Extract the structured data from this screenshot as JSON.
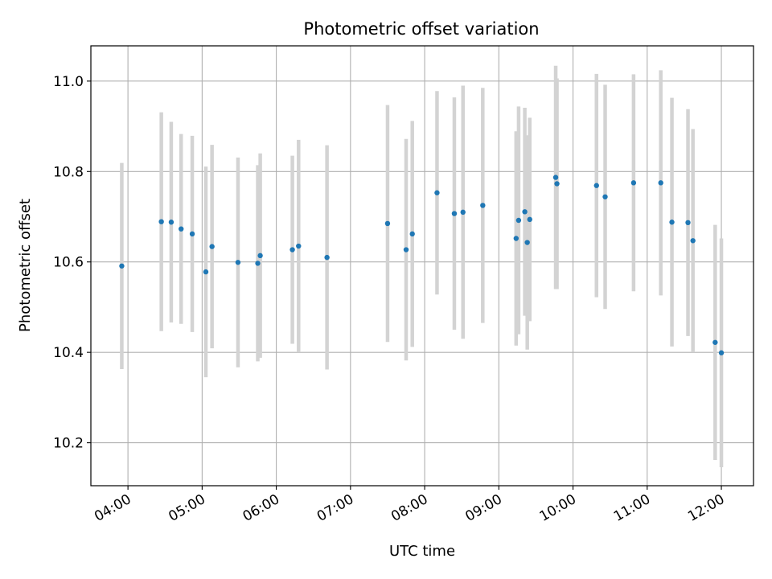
{
  "chart_data": {
    "type": "scatter",
    "title": "Photometric offset variation",
    "xlabel": "UTC time",
    "ylabel": "Photometric offset",
    "x_axis_kind": "time",
    "xlim": [
      "03:30",
      "12:26"
    ],
    "ylim": [
      10.105,
      11.078
    ],
    "xticks": [
      "04:00",
      "05:00",
      "06:00",
      "07:00",
      "08:00",
      "09:00",
      "10:00",
      "11:00",
      "12:00"
    ],
    "yticks": [
      10.2,
      10.4,
      10.6,
      10.8,
      11.0
    ],
    "ytick_labels": [
      "10.2",
      "10.4",
      "10.6",
      "10.8",
      "11.0"
    ],
    "grid": true,
    "marker_color": "#1f77b4",
    "errorbar_color": "#d3d3d3",
    "points": [
      {
        "x": "03:55",
        "y": 10.591,
        "err": 0.228
      },
      {
        "x": "04:27",
        "y": 10.689,
        "err": 0.242
      },
      {
        "x": "04:35",
        "y": 10.688,
        "err": 0.222
      },
      {
        "x": "04:43",
        "y": 10.673,
        "err": 0.21
      },
      {
        "x": "04:52",
        "y": 10.662,
        "err": 0.217
      },
      {
        "x": "05:03",
        "y": 10.578,
        "err": 0.233
      },
      {
        "x": "05:08",
        "y": 10.634,
        "err": 0.225
      },
      {
        "x": "05:29",
        "y": 10.599,
        "err": 0.232
      },
      {
        "x": "05:45",
        "y": 10.597,
        "err": 0.217
      },
      {
        "x": "05:47",
        "y": 10.614,
        "err": 0.226
      },
      {
        "x": "06:13",
        "y": 10.627,
        "err": 0.208
      },
      {
        "x": "06:18",
        "y": 10.635,
        "err": 0.235
      },
      {
        "x": "06:41",
        "y": 10.61,
        "err": 0.248
      },
      {
        "x": "07:30",
        "y": 10.685,
        "err": 0.262
      },
      {
        "x": "07:45",
        "y": 10.627,
        "err": 0.245
      },
      {
        "x": "07:50",
        "y": 10.662,
        "err": 0.25
      },
      {
        "x": "08:10",
        "y": 10.753,
        "err": 0.225
      },
      {
        "x": "08:24",
        "y": 10.707,
        "err": 0.257
      },
      {
        "x": "08:31",
        "y": 10.71,
        "err": 0.28
      },
      {
        "x": "08:47",
        "y": 10.725,
        "err": 0.26
      },
      {
        "x": "09:14",
        "y": 10.652,
        "err": 0.237
      },
      {
        "x": "09:16",
        "y": 10.692,
        "err": 0.252
      },
      {
        "x": "09:21",
        "y": 10.711,
        "err": 0.23
      },
      {
        "x": "09:23",
        "y": 10.643,
        "err": 0.237
      },
      {
        "x": "09:25",
        "y": 10.694,
        "err": 0.225
      },
      {
        "x": "09:46",
        "y": 10.787,
        "err": 0.247
      },
      {
        "x": "09:47",
        "y": 10.773,
        "err": 0.233
      },
      {
        "x": "10:19",
        "y": 10.769,
        "err": 0.247
      },
      {
        "x": "10:26",
        "y": 10.744,
        "err": 0.248
      },
      {
        "x": "10:49",
        "y": 10.775,
        "err": 0.24
      },
      {
        "x": "11:11",
        "y": 10.775,
        "err": 0.249
      },
      {
        "x": "11:20",
        "y": 10.688,
        "err": 0.275
      },
      {
        "x": "11:33",
        "y": 10.687,
        "err": 0.251
      },
      {
        "x": "11:37",
        "y": 10.647,
        "err": 0.247
      },
      {
        "x": "11:55",
        "y": 10.422,
        "err": 0.26
      },
      {
        "x": "12:00",
        "y": 10.399,
        "err": 0.253
      }
    ]
  }
}
